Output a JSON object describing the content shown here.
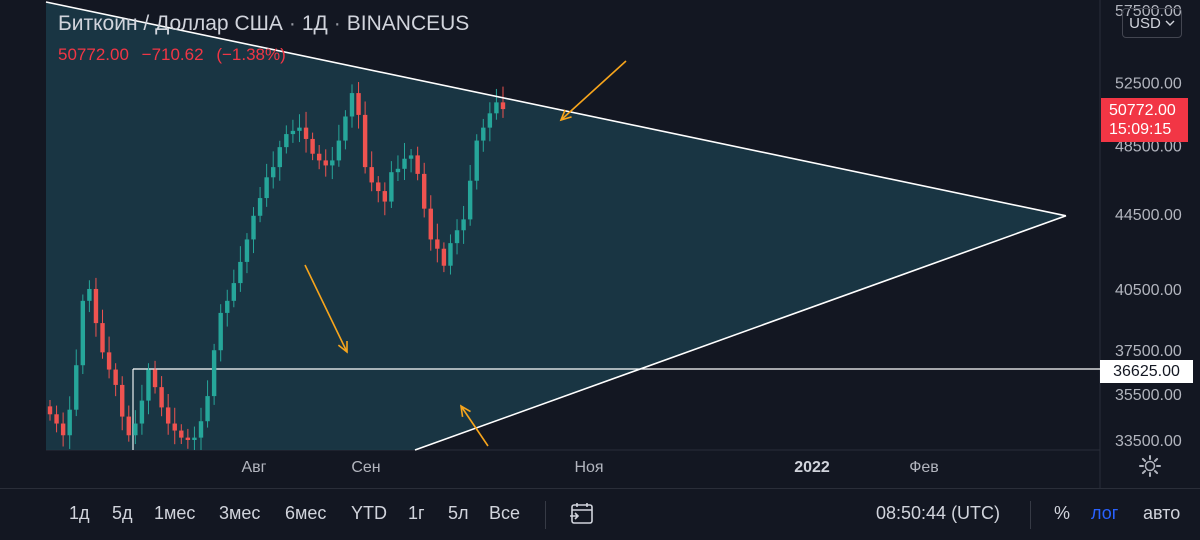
{
  "header": {
    "symbol": "Биткоин / Доллар США",
    "sep1": "·",
    "interval": "1Д",
    "sep2": "·",
    "exchange": "BINANCEUS"
  },
  "quote": {
    "last": "50772.00",
    "change": "−710.62",
    "change_pct": "(−1.38%)"
  },
  "currency_button": {
    "label": "USD",
    "icon": "chevron-down-icon"
  },
  "last_price_badge": {
    "price": "50772.00",
    "countdown": "15:09:15",
    "color": "#f23645"
  },
  "horizontal_level": {
    "label": "36625.00",
    "value": 36625
  },
  "settings": {
    "icon": "gear-icon"
  },
  "toolbar": {
    "ranges": [
      "1д",
      "5д",
      "1мес",
      "3мес",
      "6мес",
      "YTD",
      "1г",
      "5л",
      "Все"
    ],
    "date_range_icon": "calendar-range-icon",
    "clock": "08:50:44 (UTC)",
    "percent_label": "%",
    "log_label": "лог",
    "auto_label": "авто"
  },
  "chart_data": {
    "type": "candlestick",
    "title": "Биткоин / Доллар США · 1Д · BINANCEUS",
    "y_scale": "log",
    "y_ticks": [
      "57500.00",
      "52500.00",
      "48500.00",
      "44500.00",
      "40500.00",
      "37500.00",
      "35500.00",
      "33500.00"
    ],
    "y_tick_values": [
      57500,
      52500,
      48500,
      44500,
      40500,
      37500,
      35500,
      33500
    ],
    "x_ticks": [
      "Авг",
      "Сен",
      "Ноя",
      "2022",
      "Фев"
    ],
    "x_ticks_bold": [
      "2022"
    ],
    "colors": {
      "up": "#26a69a",
      "down": "#ef5350",
      "triangle_fill": "#1b3b49",
      "lines": "#ffffff",
      "arrows": "#f7a51c"
    },
    "triangle": {
      "upper_line": [
        [
          "start",
          57500
        ],
        [
          "apex",
          44400
        ]
      ],
      "lower_line": [
        [
          "start",
          33500
        ],
        [
          "apex",
          44400
        ]
      ]
    },
    "arrows": [
      "down-left toward upper trendline",
      "down-right inside triangle",
      "up-left toward lower trendline"
    ],
    "series_sketch_close": [
      34600,
      34200,
      33700,
      34800,
      36800,
      39900,
      40500,
      38800,
      37400,
      36600,
      35900,
      34500,
      33700,
      34200,
      35200,
      36600,
      35800,
      34900,
      34200,
      33900,
      33600,
      33500,
      33600,
      34300,
      35400,
      37500,
      39300,
      39900,
      40800,
      41900,
      43100,
      44400,
      45400,
      46600,
      47200,
      48400,
      49200,
      49400,
      49600,
      48900,
      48000,
      47600,
      47300,
      47600,
      48800,
      50300,
      51800,
      50400,
      47200,
      46300,
      45800,
      45200,
      46900,
      47100,
      47700,
      47900,
      46800,
      44800,
      43100,
      42600,
      41700,
      42900,
      43600,
      44200,
      46400,
      48800,
      49600,
      50500,
      51200,
      50770
    ]
  }
}
